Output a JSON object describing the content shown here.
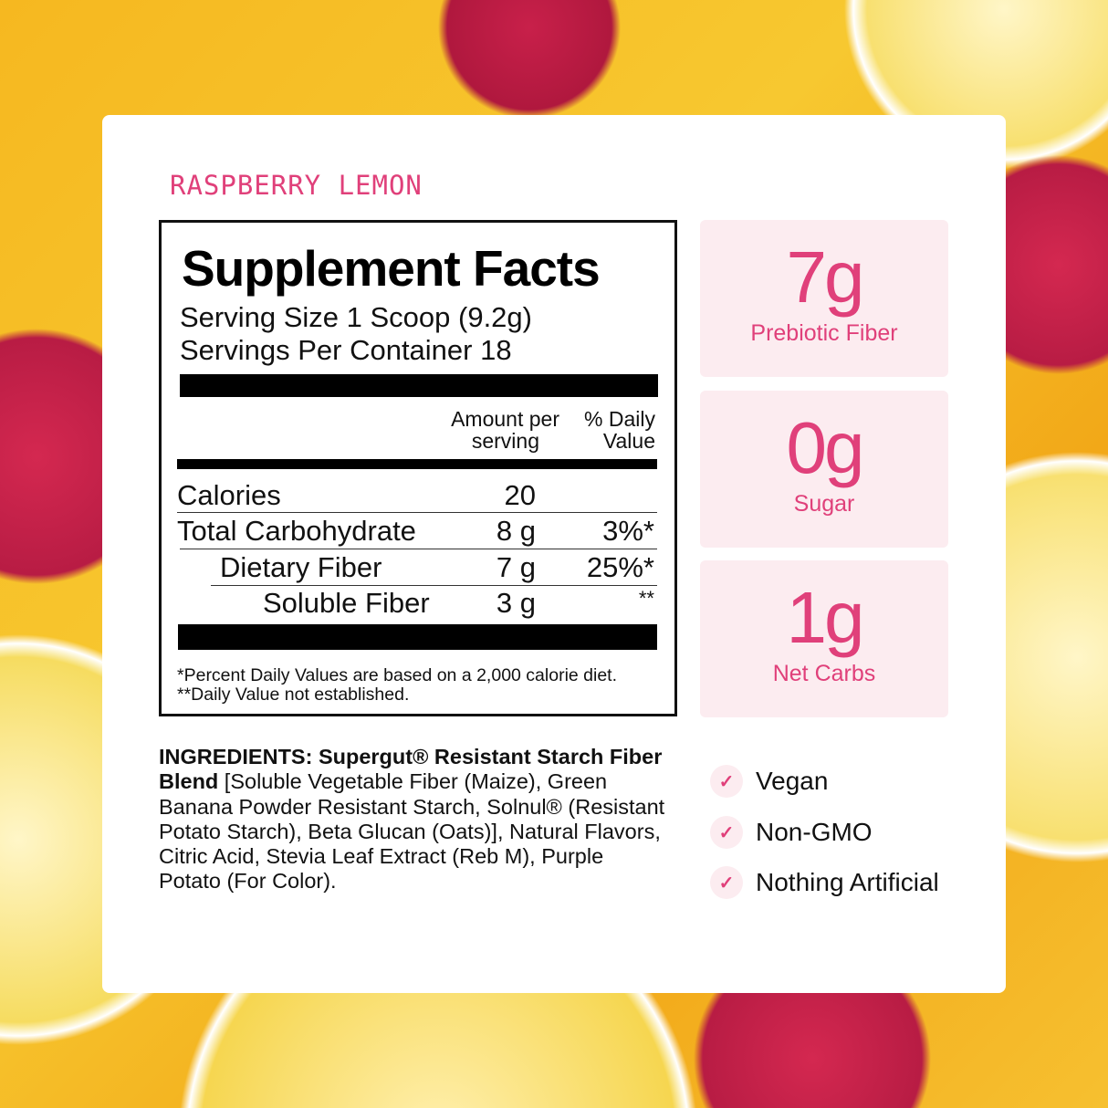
{
  "flavor": "RASPBERRY LEMON",
  "facts": {
    "title": "Supplement Facts",
    "serving_size": "Serving Size 1 Scoop (9.2g)",
    "servings_per_container": "Servings Per Container 18",
    "col_amount": [
      "Amount per",
      "serving"
    ],
    "col_dv": [
      "% Daily",
      "Value"
    ],
    "rows": [
      {
        "name": "Calories",
        "amount": "20",
        "dv": ""
      },
      {
        "name": "Total Carbohydrate",
        "amount": "8 g",
        "dv": "3%*"
      },
      {
        "name": "Dietary Fiber",
        "amount": "7 g",
        "dv": "25%*"
      },
      {
        "name": "Soluble Fiber",
        "amount": "3 g",
        "dv": "**"
      }
    ],
    "footnote1": "*Percent Daily Values are based on a 2,000 calorie diet.",
    "footnote2": "**Daily Value not established."
  },
  "stats": [
    {
      "value": "7g",
      "label": "Prebiotic Fiber"
    },
    {
      "value": "0g",
      "label": "Sugar"
    },
    {
      "value": "1g",
      "label": "Net Carbs"
    }
  ],
  "ingredients": {
    "bold": "INGREDIENTS: Supergut® Resistant Starch Fiber Blend",
    "text": " [Soluble Vegetable Fiber (Maize), Green Banana Powder Resistant Starch, Solnul® (Resistant Potato Starch), Beta Glucan (Oats)], Natural Flavors, Citric Acid, Stevia Leaf Extract (Reb M), Purple Potato (For Color)."
  },
  "badges": [
    "Vegan",
    "Non-GMO",
    "Nothing Artificial"
  ],
  "colors": {
    "accent": "#e0407a",
    "stat_bg": "#fcecf0"
  }
}
